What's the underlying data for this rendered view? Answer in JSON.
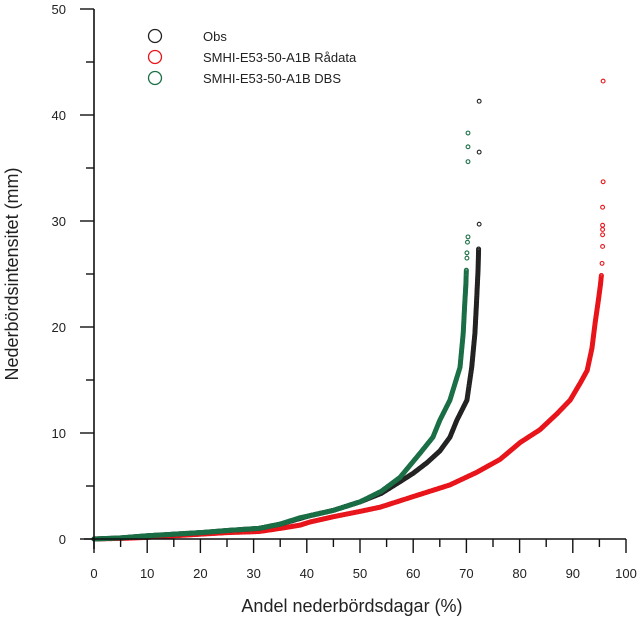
{
  "chart_data": {
    "type": "scatter",
    "title": "",
    "xlabel": "Andel nederbördsdagar (%)",
    "ylabel": "Nederbördsintensitet (mm)",
    "xlim": [
      0,
      100
    ],
    "ylim": [
      0,
      50
    ],
    "x_ticks": [
      0,
      10,
      20,
      30,
      40,
      50,
      60,
      70,
      80,
      90,
      100
    ],
    "x_tick_labels": [
      "0",
      "10",
      "20",
      "30",
      "40",
      "50",
      "60",
      "70",
      "80",
      "90",
      "100"
    ],
    "x_minor_step": 5,
    "y_ticks": [
      0,
      10,
      20,
      30,
      40,
      50
    ],
    "y_tick_labels": [
      "0",
      "10",
      "20",
      "30",
      "40",
      "50"
    ],
    "y_minor_step": 5,
    "grid": false,
    "legend_position": "top-left",
    "series": [
      {
        "name": "Obs",
        "color": "#222222",
        "marker": "open-circle",
        "curve": [
          [
            0,
            0
          ],
          [
            5,
            0.1
          ],
          [
            10,
            0.3
          ],
          [
            15,
            0.45
          ],
          [
            20,
            0.6
          ],
          [
            25,
            0.8
          ],
          [
            31,
            1.0
          ],
          [
            35,
            1.4
          ],
          [
            40.6,
            2.2
          ],
          [
            45,
            2.7
          ],
          [
            50,
            3.5
          ],
          [
            54,
            4.3
          ],
          [
            57.5,
            5.4
          ],
          [
            60,
            6.2
          ],
          [
            62.6,
            7.2
          ],
          [
            65,
            8.3
          ],
          [
            66.9,
            9.6
          ],
          [
            68.2,
            11.2
          ],
          [
            70.1,
            13.1
          ],
          [
            71,
            16.2
          ],
          [
            71.6,
            19.4
          ],
          [
            71.9,
            22.3
          ],
          [
            72.2,
            25.5
          ],
          [
            72.3,
            27.5
          ]
        ],
        "tail": [
          [
            72.4,
            29.7
          ],
          [
            72.4,
            36.5
          ],
          [
            72.4,
            41.3
          ]
        ]
      },
      {
        "name": "SMHI-E53-50-A1B Rådata",
        "color": "#e8141a",
        "marker": "open-circle",
        "curve": [
          [
            0,
            0
          ],
          [
            5,
            0.05
          ],
          [
            10,
            0.15
          ],
          [
            15,
            0.3
          ],
          [
            20,
            0.45
          ],
          [
            25,
            0.6
          ],
          [
            31,
            0.7
          ],
          [
            35,
            1.0
          ],
          [
            38.7,
            1.3
          ],
          [
            40.6,
            1.6
          ],
          [
            45,
            2.1
          ],
          [
            50,
            2.6
          ],
          [
            53.8,
            3.0
          ],
          [
            60,
            4.0
          ],
          [
            66.9,
            5.1
          ],
          [
            72,
            6.3
          ],
          [
            76.3,
            7.5
          ],
          [
            80.1,
            9.1
          ],
          [
            83.8,
            10.3
          ],
          [
            87,
            11.8
          ],
          [
            89.5,
            13.1
          ],
          [
            91.5,
            14.8
          ],
          [
            92.7,
            15.9
          ],
          [
            93.6,
            18.0
          ],
          [
            94.2,
            20.4
          ],
          [
            94.8,
            22.5
          ],
          [
            95.2,
            24.0
          ],
          [
            95.4,
            25.0
          ]
        ],
        "tail": [
          [
            95.5,
            26.0
          ],
          [
            95.6,
            27.6
          ],
          [
            95.6,
            28.7
          ],
          [
            95.6,
            29.2
          ],
          [
            95.6,
            29.6
          ],
          [
            95.6,
            31.3
          ],
          [
            95.7,
            33.7
          ],
          [
            95.7,
            43.2
          ]
        ]
      },
      {
        "name": "SMHI-E53-50-A1B DBS",
        "color": "#1a6e45",
        "marker": "open-circle",
        "curve": [
          [
            0,
            0
          ],
          [
            5,
            0.1
          ],
          [
            10,
            0.3
          ],
          [
            15,
            0.45
          ],
          [
            20,
            0.6
          ],
          [
            25,
            0.8
          ],
          [
            31,
            1.0
          ],
          [
            35,
            1.4
          ],
          [
            38.7,
            2.0
          ],
          [
            40.6,
            2.2
          ],
          [
            45,
            2.7
          ],
          [
            50,
            3.5
          ],
          [
            54,
            4.5
          ],
          [
            57.5,
            5.8
          ],
          [
            61.3,
            8.1
          ],
          [
            63.7,
            9.6
          ],
          [
            65,
            11.2
          ],
          [
            66.9,
            13.1
          ],
          [
            68.8,
            16.2
          ],
          [
            69.4,
            19.4
          ],
          [
            69.7,
            22.3
          ],
          [
            69.9,
            24.0
          ],
          [
            70,
            25.5
          ]
        ],
        "tail": [
          [
            70.1,
            26.5
          ],
          [
            70.1,
            27.0
          ],
          [
            70.2,
            28.0
          ],
          [
            70.3,
            28.5
          ],
          [
            70.3,
            35.6
          ],
          [
            70.3,
            37.0
          ],
          [
            70.3,
            38.3
          ]
        ]
      }
    ]
  }
}
